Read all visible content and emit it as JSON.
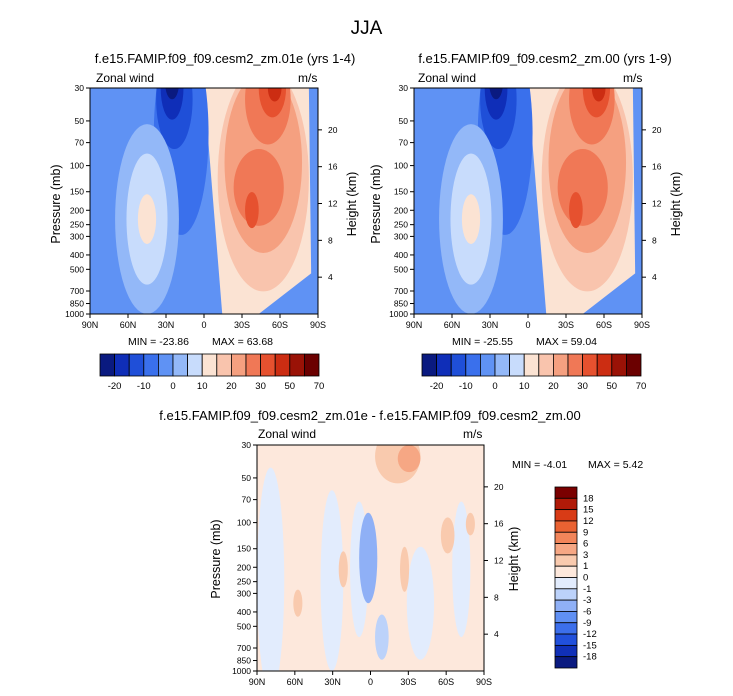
{
  "figure_title": "JJA",
  "colors": {
    "full_field": [
      "#0a1a80",
      "#0f2eb8",
      "#1f4fd8",
      "#3a70ec",
      "#5f92f4",
      "#93b8f8",
      "#c8dcfc",
      "#fbe3d3",
      "#f9c4ad",
      "#f5a080",
      "#f07856",
      "#e6512f",
      "#cc2d12",
      "#9a1206",
      "#6b0000"
    ],
    "diff_field": [
      "#0a1a80",
      "#1030b8",
      "#2150dc",
      "#3c6fec",
      "#6090f4",
      "#8fb0f6",
      "#bcd2fa",
      "#e2ecfd",
      "#fde8dc",
      "#f9caae",
      "#f6a784",
      "#f2855a",
      "#ea6232",
      "#d83b16",
      "#b01a08",
      "#7a0000"
    ]
  },
  "panels": [
    {
      "title": "f.e15.FAMIP.f09_f09.cesm2_zm.01e (yrs 1-4)",
      "field_label": "Zonal wind",
      "units": "m/s",
      "ylabel_left": "Pressure (mb)",
      "ylabel_right": "Height (km)",
      "min_label": "MIN = -23.86",
      "max_label": "MAX = 63.68"
    },
    {
      "title": "f.e15.FAMIP.f09_f09.cesm2_zm.00 (yrs 1-9)",
      "field_label": "Zonal wind",
      "units": "m/s",
      "ylabel_left": "Pressure (mb)",
      "ylabel_right": "Height (km)",
      "min_label": "MIN = -25.55",
      "max_label": "MAX = 59.04"
    },
    {
      "title": "f.e15.FAMIP.f09_f09.cesm2_zm.01e - f.e15.FAMIP.f09_f09.cesm2_zm.00",
      "field_label": "Zonal wind",
      "units": "m/s",
      "ylabel_left": "Pressure (mb)",
      "ylabel_right": "Height (km)",
      "min_label": "MIN =  -4.01",
      "max_label": "MAX =   5.42"
    }
  ],
  "chart_data": [
    {
      "type": "heatmap",
      "title": "f.e15.FAMIP.f09_f09.cesm2_zm.01e (yrs 1-4)",
      "variable": "Zonal wind",
      "units": "m/s",
      "xlabel": "",
      "ylabel": "Pressure (mb)",
      "ylabel_right": "Height (km)",
      "x_ticks": [
        "90N",
        "60N",
        "30N",
        "0",
        "30S",
        "60S",
        "90S"
      ],
      "y_ticks_pressure": [
        "30",
        "50",
        "70",
        "100",
        "150",
        "200",
        "250",
        "300",
        "400",
        "500",
        "700",
        "850",
        "1000"
      ],
      "y_ticks_height": [
        "20",
        "16",
        "12",
        "8",
        "4"
      ],
      "ylim_mb": [
        1000,
        30
      ],
      "log_pressure_axis": true,
      "min": -23.86,
      "max": 63.68,
      "colorbar_labels": [
        "-20",
        "-10",
        "0",
        "10",
        "20",
        "30",
        "50",
        "70"
      ],
      "features": [
        {
          "lat": -50,
          "p_mb": 30,
          "value": 63
        },
        {
          "lat": -35,
          "p_mb": 200,
          "value": 38
        },
        {
          "lat": 15,
          "p_mb": 30,
          "value": -23
        },
        {
          "lat": 50,
          "p_mb": 200,
          "value": 10
        }
      ]
    },
    {
      "type": "heatmap",
      "title": "f.e15.FAMIP.f09_f09.cesm2_zm.00 (yrs 1-9)",
      "variable": "Zonal wind",
      "units": "m/s",
      "xlabel": "",
      "ylabel": "Pressure (mb)",
      "ylabel_right": "Height (km)",
      "x_ticks": [
        "90N",
        "60N",
        "30N",
        "0",
        "30S",
        "60S",
        "90S"
      ],
      "y_ticks_pressure": [
        "30",
        "50",
        "70",
        "100",
        "150",
        "200",
        "250",
        "300",
        "400",
        "500",
        "700",
        "850",
        "1000"
      ],
      "y_ticks_height": [
        "20",
        "16",
        "12",
        "8",
        "4"
      ],
      "ylim_mb": [
        1000,
        30
      ],
      "log_pressure_axis": true,
      "min": -25.55,
      "max": 59.04,
      "colorbar_labels": [
        "-20",
        "-10",
        "0",
        "10",
        "20",
        "30",
        "50",
        "70"
      ],
      "features": [
        {
          "lat": -50,
          "p_mb": 30,
          "value": 59
        },
        {
          "lat": -35,
          "p_mb": 200,
          "value": 36
        },
        {
          "lat": 20,
          "p_mb": 30,
          "value": -25
        },
        {
          "lat": 55,
          "p_mb": 200,
          "value": 11
        }
      ]
    },
    {
      "type": "heatmap",
      "title": "f.e15.FAMIP.f09_f09.cesm2_zm.01e - f.e15.FAMIP.f09_f09.cesm2_zm.00",
      "variable": "Zonal wind",
      "units": "m/s",
      "xlabel": "",
      "ylabel": "Pressure (mb)",
      "ylabel_right": "Height (km)",
      "x_ticks": [
        "90N",
        "60N",
        "30N",
        "0",
        "30S",
        "60S",
        "90S"
      ],
      "y_ticks_pressure": [
        "30",
        "50",
        "70",
        "100",
        "150",
        "200",
        "250",
        "300",
        "400",
        "500",
        "700",
        "850",
        "1000"
      ],
      "y_ticks_height": [
        "20",
        "16",
        "12",
        "8",
        "4"
      ],
      "ylim_mb": [
        1000,
        30
      ],
      "log_pressure_axis": true,
      "min": -4.01,
      "max": 5.42,
      "colorbar_labels": [
        "18",
        "15",
        "12",
        "9",
        "6",
        "3",
        "1",
        "0",
        "-1",
        "-3",
        "-6",
        "-9",
        "-12",
        "-15",
        "-18"
      ],
      "features": [
        {
          "lat": -40,
          "p_mb": 40,
          "value": 3
        },
        {
          "lat": -5,
          "p_mb": 180,
          "value": -4
        },
        {
          "lat": 25,
          "p_mb": 200,
          "value": 2
        },
        {
          "lat": 50,
          "p_mb": 300,
          "value": 1.5
        }
      ]
    }
  ]
}
